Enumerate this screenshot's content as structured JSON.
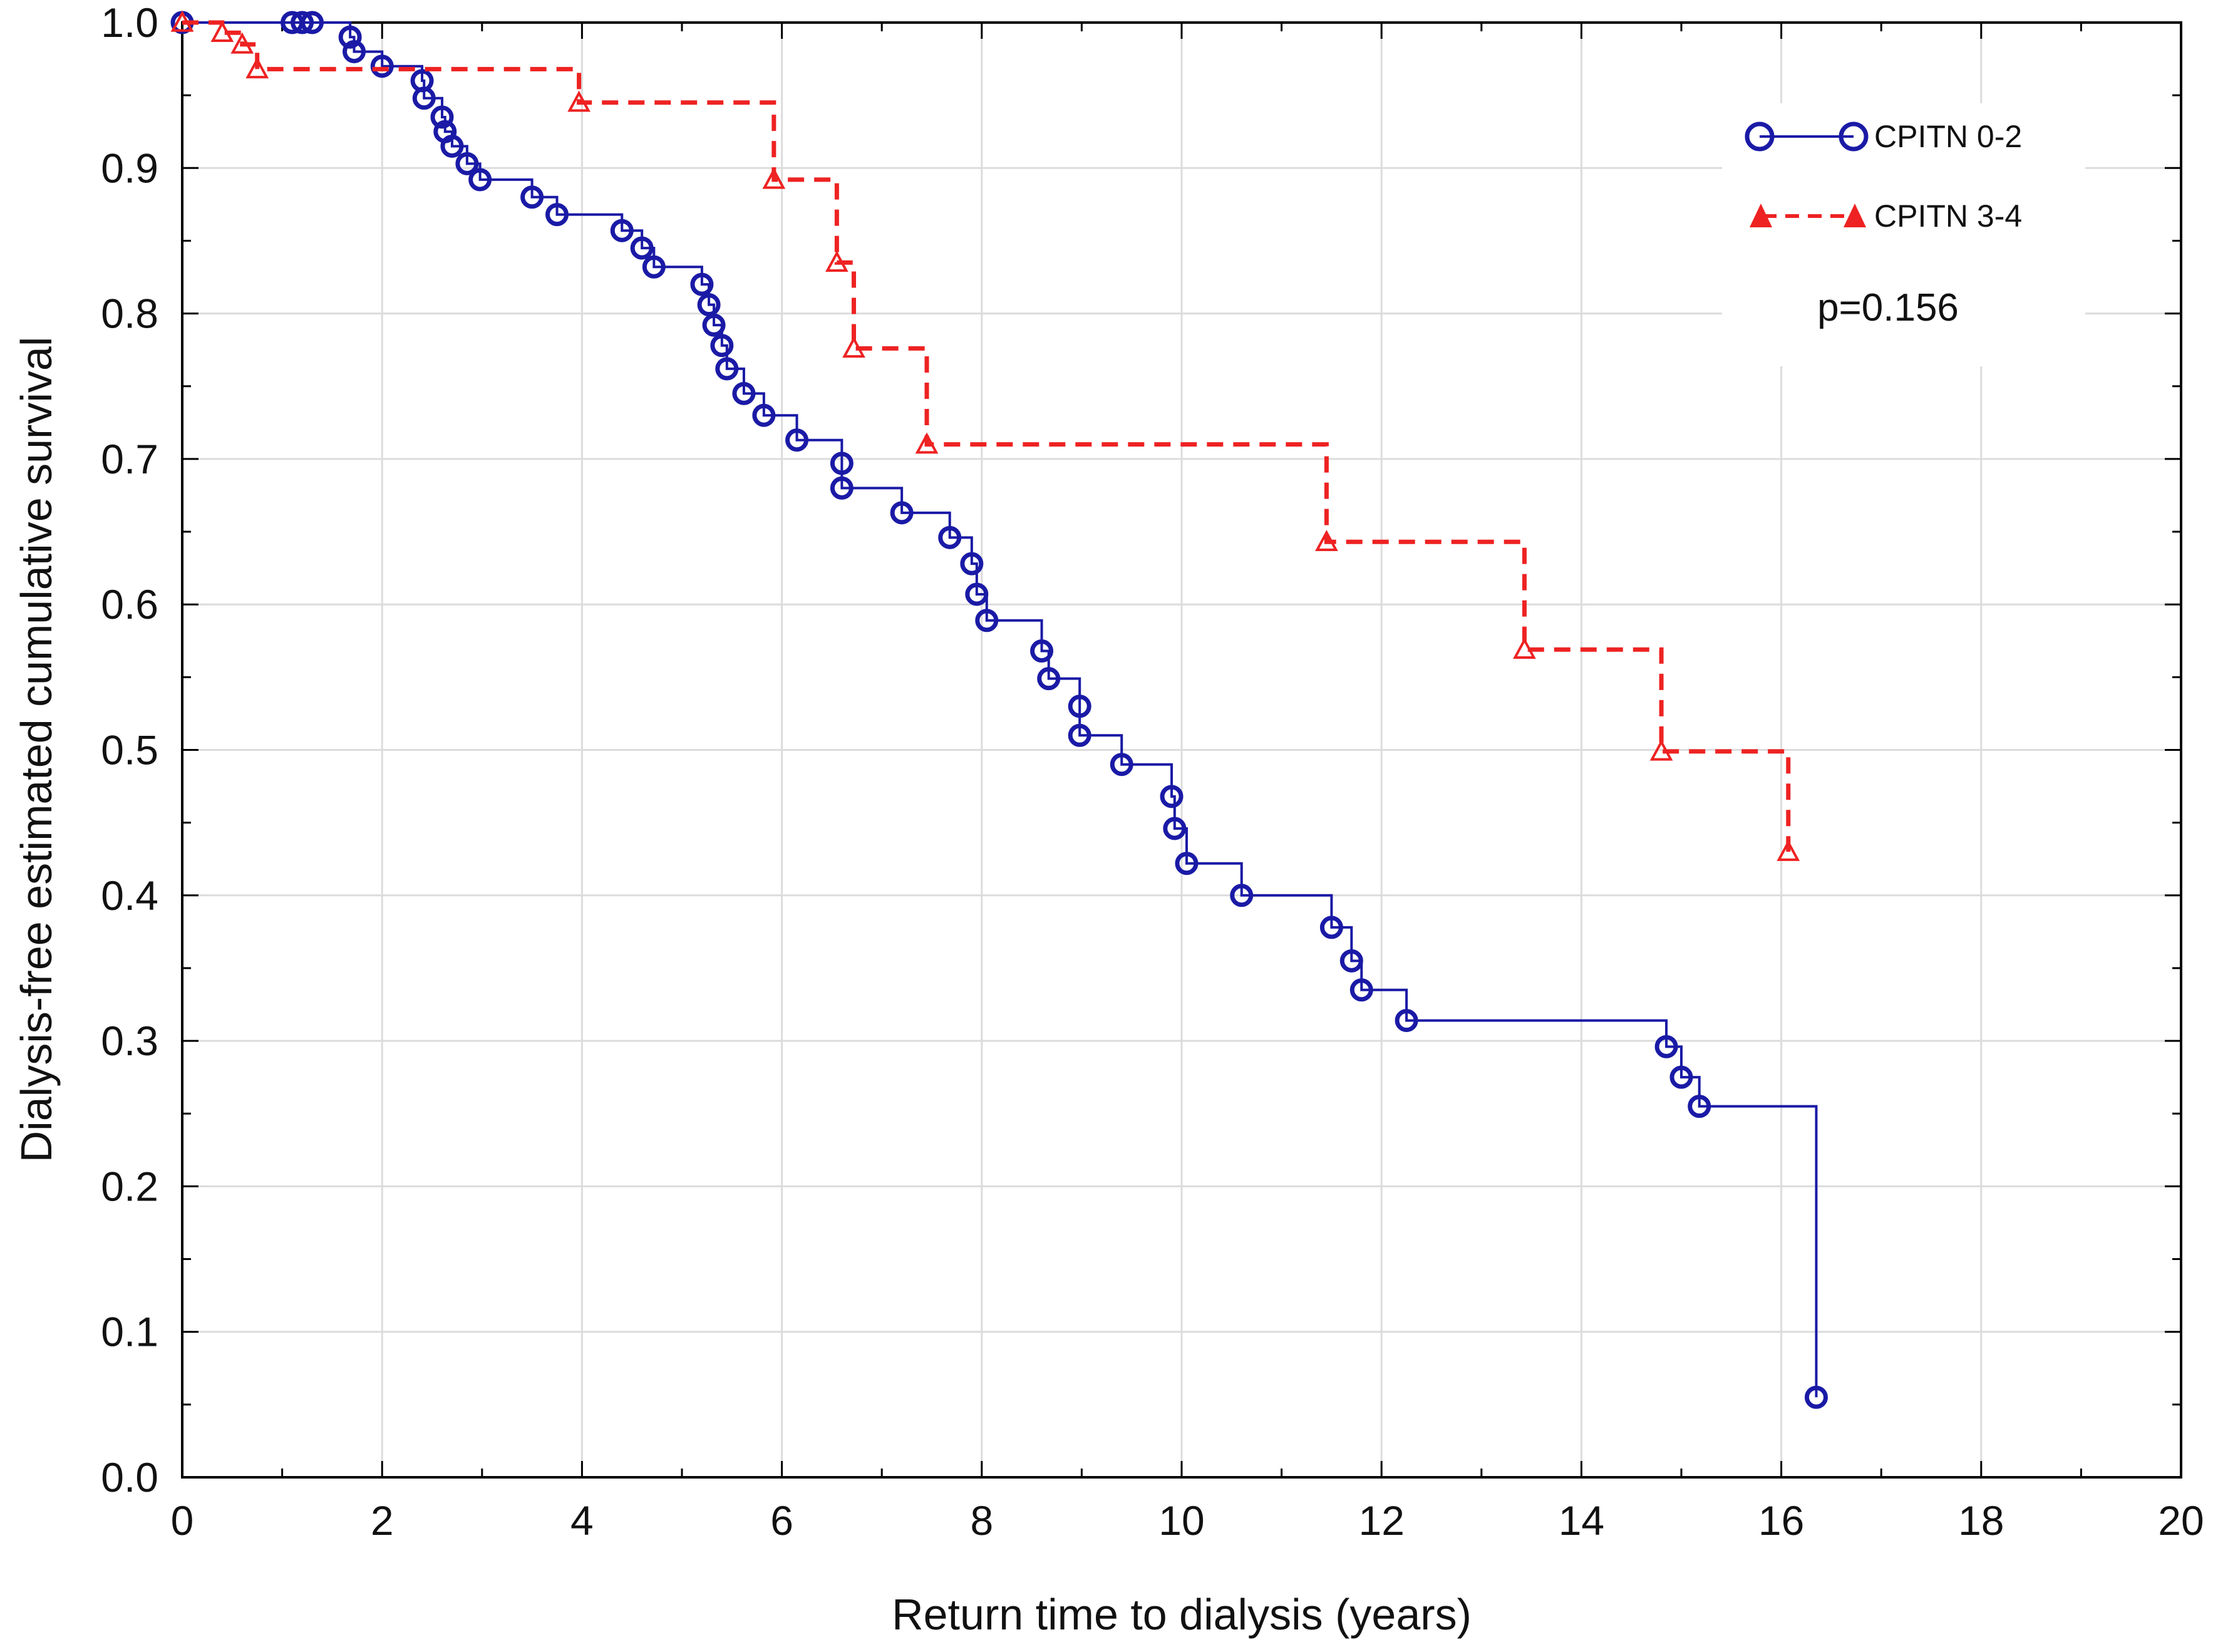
{
  "chart_data": {
    "type": "line",
    "subtype": "kaplan-meier",
    "title": "",
    "xlabel": "Return time to dialysis (years)",
    "ylabel": "Dialysis-free estimated cumulative survival",
    "xlim": [
      0,
      20
    ],
    "ylim": [
      0,
      1
    ],
    "xticks": [
      0,
      2,
      4,
      6,
      8,
      10,
      12,
      14,
      16,
      18,
      20
    ],
    "xtick_labels": [
      "0",
      "2",
      "4",
      "6",
      "8",
      "10",
      "12",
      "14",
      "16",
      "18",
      "20"
    ],
    "yticks": [
      0,
      0.1,
      0.2,
      0.3,
      0.4,
      0.5,
      0.6,
      0.7,
      0.8,
      0.9,
      1.0
    ],
    "ytick_labels": [
      "0.0",
      "0.1",
      "0.2",
      "0.3",
      "0.4",
      "0.5",
      "0.6",
      "0.7",
      "0.8",
      "0.9",
      "1.0"
    ],
    "grid": true,
    "legend_position": "top-right",
    "annotation": "p=0.156",
    "series": [
      {
        "name": "CPITN 0-2",
        "color": "#1a1aa6",
        "line_style": "solid",
        "marker": "open-circle",
        "steps": [
          [
            0,
            1.0
          ],
          [
            1.1,
            1.0
          ],
          [
            1.2,
            1.0
          ],
          [
            1.3,
            1.0
          ],
          [
            1.68,
            0.99
          ],
          [
            1.72,
            0.98
          ],
          [
            2.0,
            0.97
          ],
          [
            2.4,
            0.96
          ],
          [
            2.42,
            0.948
          ],
          [
            2.6,
            0.935
          ],
          [
            2.63,
            0.925
          ],
          [
            2.7,
            0.915
          ],
          [
            2.85,
            0.903
          ],
          [
            2.98,
            0.892
          ],
          [
            3.5,
            0.88
          ],
          [
            3.75,
            0.868
          ],
          [
            4.4,
            0.857
          ],
          [
            4.6,
            0.845
          ],
          [
            4.72,
            0.832
          ],
          [
            5.2,
            0.82
          ],
          [
            5.27,
            0.806
          ],
          [
            5.32,
            0.792
          ],
          [
            5.4,
            0.778
          ],
          [
            5.45,
            0.762
          ],
          [
            5.62,
            0.745
          ],
          [
            5.82,
            0.73
          ],
          [
            6.15,
            0.713
          ],
          [
            6.6,
            0.697
          ],
          [
            6.6,
            0.68
          ],
          [
            7.2,
            0.663
          ],
          [
            7.68,
            0.646
          ],
          [
            7.9,
            0.628
          ],
          [
            7.95,
            0.607
          ],
          [
            8.05,
            0.589
          ],
          [
            8.6,
            0.568
          ],
          [
            8.67,
            0.549
          ],
          [
            8.98,
            0.53
          ],
          [
            8.98,
            0.51
          ],
          [
            9.4,
            0.49
          ],
          [
            9.9,
            0.468
          ],
          [
            9.93,
            0.446
          ],
          [
            10.05,
            0.422
          ],
          [
            10.6,
            0.4
          ],
          [
            11.5,
            0.378
          ],
          [
            11.7,
            0.355
          ],
          [
            11.8,
            0.335
          ],
          [
            12.25,
            0.314
          ],
          [
            14.85,
            0.296
          ],
          [
            15.0,
            0.275
          ],
          [
            15.18,
            0.255
          ],
          [
            16.35,
            0.055
          ]
        ]
      },
      {
        "name": "CPITN 3-4",
        "color": "#ee2222",
        "line_style": "dashed",
        "marker": "triangle",
        "steps": [
          [
            0,
            1.0
          ],
          [
            0.4,
            0.993
          ],
          [
            0.6,
            0.985
          ],
          [
            0.75,
            0.968
          ],
          [
            3.97,
            0.945
          ],
          [
            5.92,
            0.892
          ],
          [
            6.55,
            0.835
          ],
          [
            6.72,
            0.776
          ],
          [
            7.45,
            0.71
          ],
          [
            11.45,
            0.643
          ],
          [
            13.43,
            0.569
          ],
          [
            14.8,
            0.499
          ],
          [
            16.07,
            0.43
          ]
        ]
      }
    ]
  }
}
